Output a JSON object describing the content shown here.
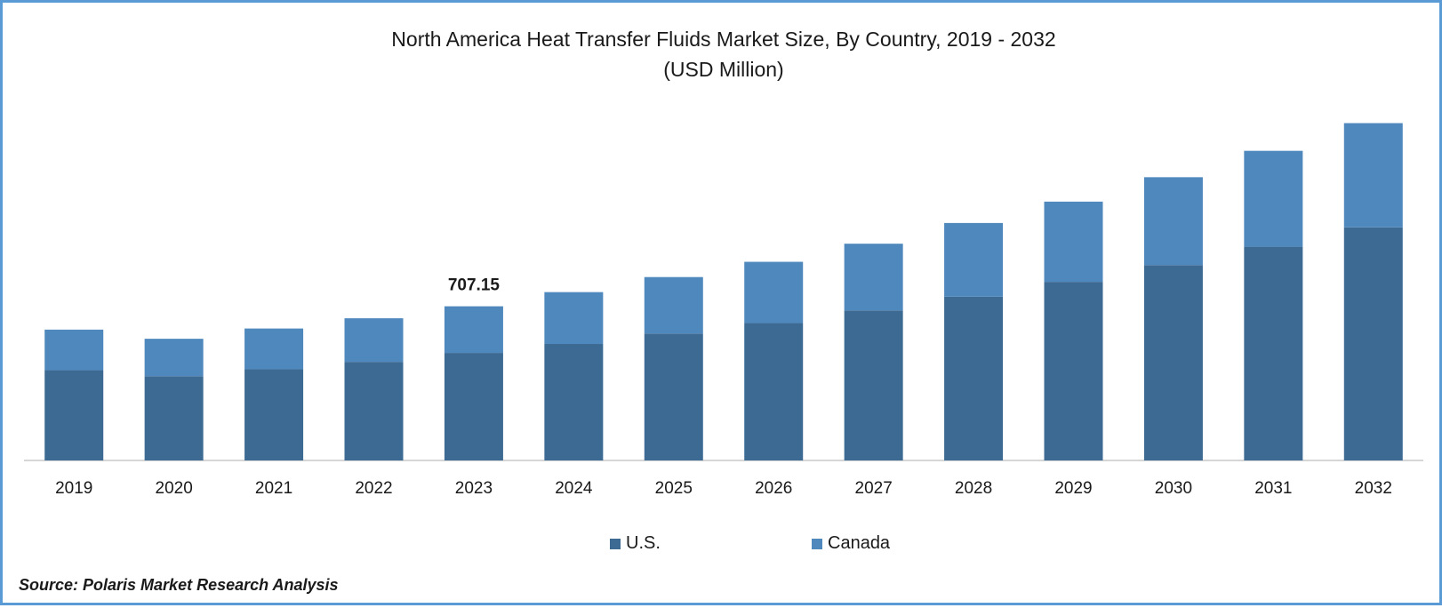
{
  "chart_data": {
    "type": "bar",
    "stacked": true,
    "title": "North America Heat Transfer Fluids Market Size, By Country, 2019 - 2032",
    "subtitle": "(USD Million)",
    "categories": [
      "2019",
      "2020",
      "2021",
      "2022",
      "2023",
      "2024",
      "2025",
      "2026",
      "2027",
      "2028",
      "2029",
      "2030",
      "2031",
      "2032"
    ],
    "series": [
      {
        "name": "U.S.",
        "color": "#3d6a93",
        "values": [
          414,
          386,
          418,
          452,
          493,
          534,
          582,
          630,
          688,
          751,
          819,
          896,
          980,
          1069
        ]
      },
      {
        "name": "Canada",
        "color": "#4e88bd",
        "values": [
          186,
          172,
          187,
          200,
          214,
          238,
          259,
          281,
          306,
          338,
          368,
          403,
          440,
          478
        ]
      }
    ],
    "data_labels": [
      {
        "category": "2023",
        "text": "707.15"
      }
    ],
    "ylim": [
      0,
      1600
    ],
    "grid": false,
    "legend": "bottom",
    "source": "Source: Polaris Market Research Analysis"
  }
}
